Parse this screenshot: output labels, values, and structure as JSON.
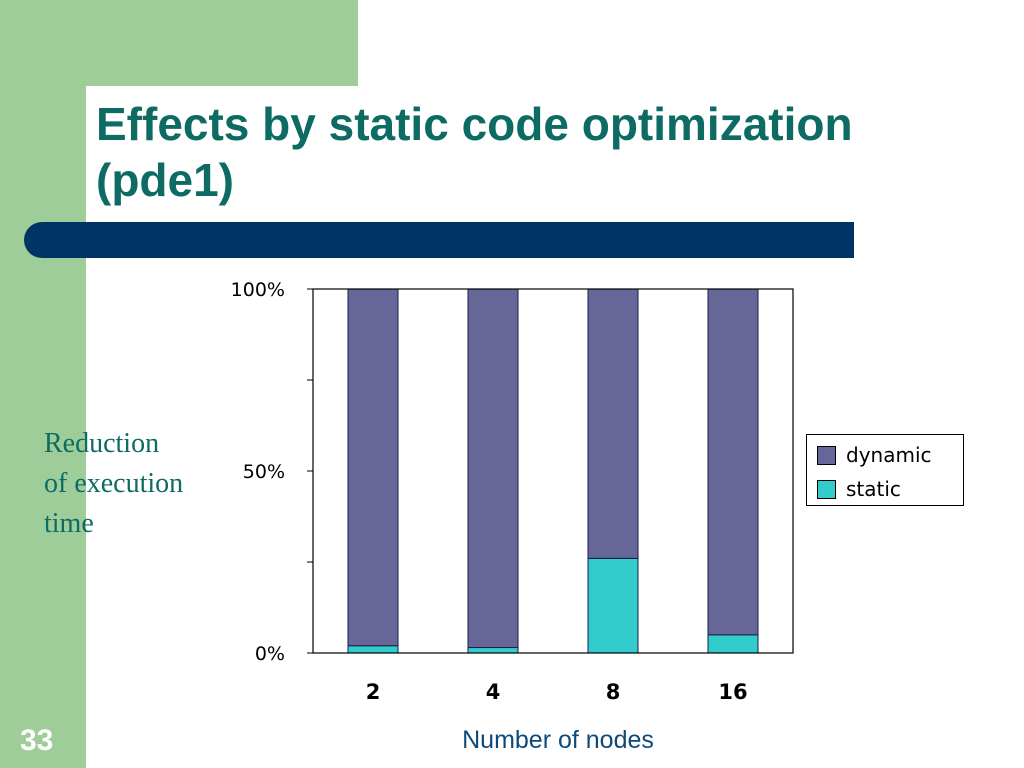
{
  "slide": {
    "title": "Effects by static code optimization (pde1)",
    "number": "33",
    "y_caption": "Reduction\nof execution\ntime",
    "x_caption": "Number of nodes"
  },
  "colors": {
    "dynamic": "#666699",
    "static": "#33cccc",
    "title": "#0d6b63",
    "bar": "#003366",
    "accent_green": "#9fcd9a"
  },
  "chart_data": {
    "type": "bar",
    "stacked": true,
    "categories": [
      "2",
      "4",
      "8",
      "16"
    ],
    "series": [
      {
        "name": "static",
        "values": [
          2,
          1.5,
          26,
          5
        ]
      },
      {
        "name": "dynamic",
        "values": [
          98,
          98.5,
          74,
          95
        ]
      }
    ],
    "ylim": [
      0,
      100
    ],
    "yticks": [
      "0%",
      "50%",
      "100%"
    ],
    "legend": "right",
    "xlabel": "Number of nodes",
    "ylabel": "Reduction of execution time"
  }
}
